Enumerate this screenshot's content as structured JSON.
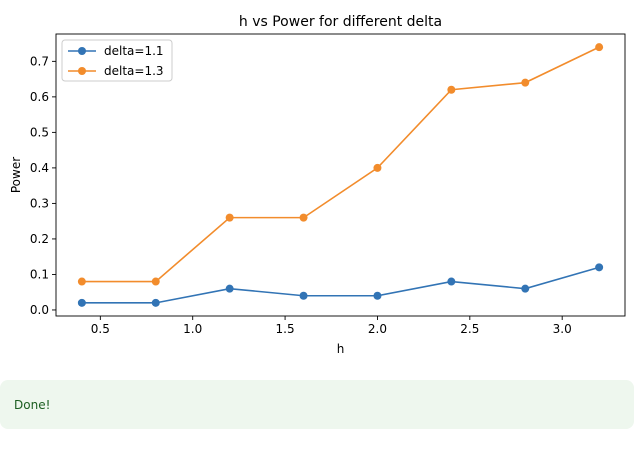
{
  "chart_data": {
    "type": "line",
    "title": "h vs Power for different delta",
    "xlabel": "h",
    "ylabel": "Power",
    "x": [
      0.4,
      0.8,
      1.2,
      1.6,
      2.0,
      2.4,
      2.8,
      3.2
    ],
    "xlim": [
      0.26,
      3.34
    ],
    "ylim": [
      -0.017,
      0.777
    ],
    "xticks": [
      0.5,
      1.0,
      1.5,
      2.0,
      2.5,
      3.0
    ],
    "xtick_labels": [
      "0.5",
      "1.0",
      "1.5",
      "2.0",
      "2.5",
      "3.0"
    ],
    "yticks": [
      0.0,
      0.1,
      0.2,
      0.3,
      0.4,
      0.5,
      0.6,
      0.7
    ],
    "ytick_labels": [
      "0.0",
      "0.1",
      "0.2",
      "0.3",
      "0.4",
      "0.5",
      "0.6",
      "0.7"
    ],
    "grid": false,
    "legend_position": "top-left",
    "series": [
      {
        "name": "delta=1.1",
        "color": "#3274b5",
        "values": [
          0.02,
          0.02,
          0.06,
          0.04,
          0.04,
          0.08,
          0.06,
          0.12
        ]
      },
      {
        "name": "delta=1.3",
        "color": "#f28c2c",
        "values": [
          0.08,
          0.08,
          0.26,
          0.26,
          0.4,
          0.62,
          0.64,
          0.74
        ]
      }
    ]
  },
  "status": {
    "message": "Done!"
  }
}
